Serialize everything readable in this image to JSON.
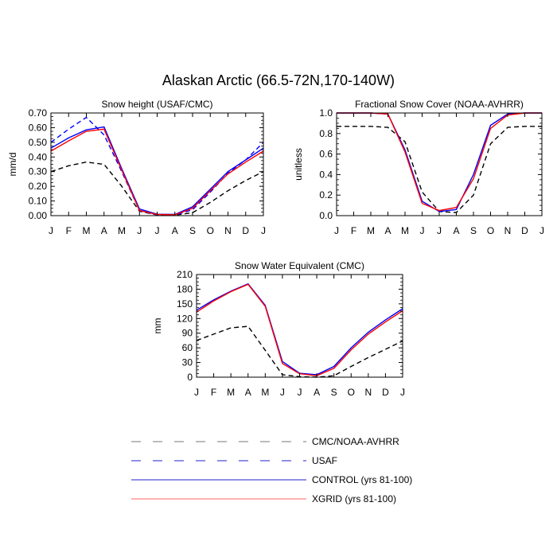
{
  "figure": {
    "title": "Alaskan Arctic (66.5-72N,170-140W)"
  },
  "months": [
    "J",
    "F",
    "M",
    "A",
    "M",
    "J",
    "J",
    "A",
    "S",
    "O",
    "N",
    "D",
    "J"
  ],
  "colors": {
    "obs": "#000000",
    "usaf": "#0000ff",
    "control": "#0000ff",
    "xgrid": "#ff0000"
  },
  "chart_data": [
    {
      "type": "line",
      "title": "Snow height (USAF/CMC)",
      "ylabel": "mm/d",
      "ylim": [
        0,
        0.7
      ],
      "yticks": [
        0.0,
        0.1,
        0.2,
        0.3,
        0.4,
        0.5,
        0.6,
        0.7
      ],
      "ytick_labels": [
        "0.00",
        "0.10",
        "0.20",
        "0.30",
        "0.40",
        "0.50",
        "0.60",
        "0.70"
      ],
      "series": [
        {
          "name": "CMC/NOAA-AVHRR",
          "style": "dashed",
          "color": "#000000",
          "values": [
            0.3,
            0.34,
            0.365,
            0.35,
            0.2,
            0.03,
            0.005,
            0.003,
            0.02,
            0.09,
            0.17,
            0.24,
            0.3
          ]
        },
        {
          "name": "USAF",
          "style": "dashed",
          "color": "#0000ff",
          "values": [
            0.5,
            0.59,
            0.67,
            0.55,
            0.3,
            0.035,
            0.005,
            0.004,
            0.04,
            0.16,
            0.29,
            0.38,
            0.5
          ]
        },
        {
          "name": "CONTROL (yrs 81-100)",
          "style": "solid",
          "color": "#0000ff",
          "values": [
            0.46,
            0.53,
            0.585,
            0.605,
            0.32,
            0.045,
            0.01,
            0.008,
            0.06,
            0.18,
            0.3,
            0.38,
            0.46
          ]
        },
        {
          "name": "XGRID (yrs 81-100)",
          "style": "solid",
          "color": "#ff0000",
          "values": [
            0.44,
            0.51,
            0.575,
            0.59,
            0.31,
            0.035,
            0.008,
            0.006,
            0.05,
            0.17,
            0.285,
            0.365,
            0.44
          ]
        }
      ]
    },
    {
      "type": "line",
      "title": "Fractional Snow Cover (NOAA-AVHRR)",
      "ylabel": "unitless",
      "ylim": [
        0,
        1.0
      ],
      "yticks": [
        0.0,
        0.2,
        0.4,
        0.6,
        0.8,
        1.0
      ],
      "ytick_labels": [
        "0.0",
        "0.2",
        "0.4",
        "0.6",
        "0.8",
        "1.0"
      ],
      "series": [
        {
          "name": "CMC/NOAA-AVHRR",
          "style": "dashed",
          "color": "#000000",
          "values": [
            0.87,
            0.87,
            0.87,
            0.86,
            0.72,
            0.23,
            0.04,
            0.03,
            0.2,
            0.7,
            0.86,
            0.87,
            0.87
          ]
        },
        {
          "name": "CONTROL (yrs 81-100)",
          "style": "solid",
          "color": "#0000ff",
          "values": [
            1.0,
            1.0,
            1.0,
            0.99,
            0.64,
            0.14,
            0.04,
            0.06,
            0.4,
            0.88,
            0.99,
            1.0,
            1.0
          ]
        },
        {
          "name": "XGRID (yrs 81-100)",
          "style": "solid",
          "color": "#ff0000",
          "values": [
            1.0,
            1.0,
            1.0,
            0.99,
            0.62,
            0.12,
            0.05,
            0.08,
            0.36,
            0.85,
            0.98,
            1.0,
            1.0
          ]
        }
      ]
    },
    {
      "type": "line",
      "title": "Snow Water Equivalent (CMC)",
      "ylabel": "mm",
      "ylim": [
        0,
        210
      ],
      "yticks": [
        0,
        30,
        60,
        90,
        120,
        150,
        180,
        210
      ],
      "ytick_labels": [
        "0",
        "30",
        "60",
        "90",
        "120",
        "150",
        "180",
        "210"
      ],
      "series": [
        {
          "name": "CMC/NOAA-AVHRR",
          "style": "dashed",
          "color": "#000000",
          "values": [
            75,
            88,
            101,
            104,
            55,
            5,
            1,
            0,
            3,
            22,
            40,
            57,
            74
          ]
        },
        {
          "name": "CONTROL (yrs 81-100)",
          "style": "solid",
          "color": "#0000ff",
          "values": [
            137,
            158,
            176,
            191,
            147,
            32,
            8,
            5,
            22,
            60,
            92,
            117,
            140
          ]
        },
        {
          "name": "XGRID (yrs 81-100)",
          "style": "solid",
          "color": "#ff0000",
          "values": [
            133,
            156,
            175,
            190,
            145,
            28,
            7,
            3,
            18,
            56,
            88,
            113,
            136
          ]
        }
      ]
    }
  ],
  "legend": [
    {
      "label": "CMC/NOAA-AVHRR",
      "style": "dashed",
      "color": "#777777"
    },
    {
      "label": "USAF",
      "style": "dashed",
      "color": "#2222cc"
    },
    {
      "label": "CONTROL (yrs 81-100)",
      "style": "solid",
      "color": "#2222cc"
    },
    {
      "label": "XGRID (yrs 81-100)",
      "style": "solid",
      "color": "#ff6666"
    }
  ]
}
